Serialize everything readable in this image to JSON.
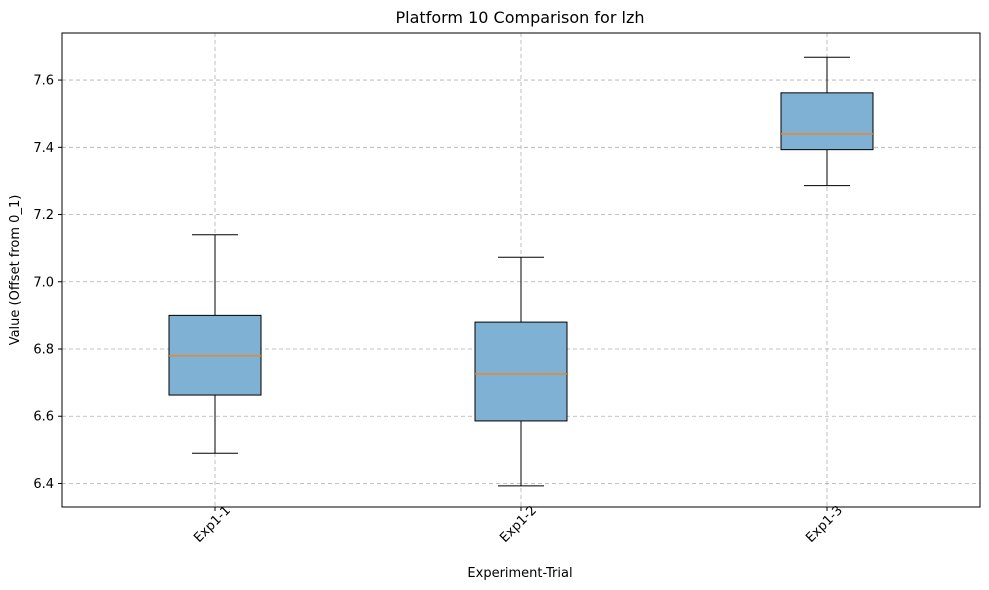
{
  "chart_data": {
    "type": "box",
    "title": "Platform 10 Comparison for lzh",
    "xlabel": "Experiment-Trial",
    "ylabel": "Value (Offset from 0_1)",
    "ylim": [
      6.33,
      7.74
    ],
    "yticks": [
      "6.4",
      "6.6",
      "6.8",
      "7.0",
      "7.2",
      "7.4",
      "7.6"
    ],
    "grid": true,
    "colors": {
      "box_fill": "#7fb1d4",
      "box_edge": "#000000",
      "median": "#ff7f0e",
      "grid": "#b0b0b0"
    },
    "categories": [
      "Exp1-1",
      "Exp1-2",
      "Exp1-3"
    ],
    "boxes": [
      {
        "label": "Exp1-1",
        "whisker_low": 6.49,
        "q1": 6.663,
        "median": 6.78,
        "q3": 6.9,
        "whisker_high": 7.14
      },
      {
        "label": "Exp1-2",
        "whisker_low": 6.393,
        "q1": 6.586,
        "median": 6.726,
        "q3": 6.88,
        "whisker_high": 7.073
      },
      {
        "label": "Exp1-3",
        "whisker_low": 7.286,
        "q1": 7.393,
        "median": 7.44,
        "q3": 7.562,
        "whisker_high": 7.668
      }
    ]
  }
}
